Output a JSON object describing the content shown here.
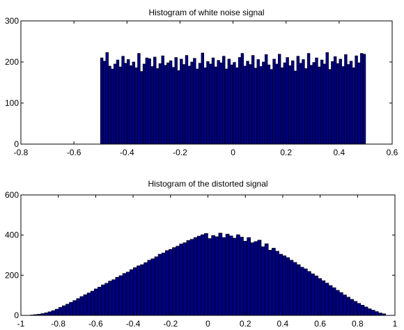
{
  "chart_data": [
    {
      "type": "bar",
      "title": "Histogram of white noise signal",
      "xlabel": "",
      "ylabel": "",
      "xlim": [
        -0.8,
        0.6
      ],
      "ylim": [
        0,
        300
      ],
      "xticks": [
        "-0.8",
        "-0.6",
        "-0.4",
        "-0.2",
        "0",
        "0.2",
        "0.4",
        "0.6"
      ],
      "yticks": [
        "0",
        "100",
        "200",
        "300"
      ],
      "bar_color": "#000080",
      "bin_range": [
        -0.5,
        0.5
      ],
      "values": [
        210,
        202,
        223,
        190,
        183,
        195,
        205,
        188,
        214,
        197,
        206,
        191,
        200,
        186,
        221,
        177,
        195,
        210,
        208,
        189,
        212,
        184,
        196,
        215,
        192,
        198,
        203,
        187,
        211,
        179,
        207,
        194,
        216,
        190,
        200,
        209,
        183,
        197,
        222,
        186,
        201,
        195,
        210,
        188,
        204,
        198,
        214,
        183,
        207,
        193,
        199,
        186,
        211,
        221,
        190,
        202,
        194,
        216,
        185,
        206,
        189,
        200,
        218,
        193,
        182,
        207,
        195,
        219,
        186,
        198,
        211,
        191,
        203,
        178,
        214,
        197,
        206,
        184,
        221,
        192,
        199,
        210,
        188,
        205,
        195,
        223,
        182,
        201,
        213,
        196,
        207,
        189,
        218,
        194,
        202,
        186,
        215,
        198,
        221,
        219
      ]
    },
    {
      "type": "bar",
      "title": "Histogram of  the distorted  signal",
      "xlabel": "",
      "ylabel": "",
      "xlim": [
        -1,
        1
      ],
      "ylim": [
        0,
        600
      ],
      "xticks": [
        "-1",
        "-0.8",
        "-0.6",
        "-0.4",
        "-0.2",
        "0",
        "0.2",
        "0.4",
        "0.6",
        "0.8",
        "1"
      ],
      "yticks": [
        "0",
        "200",
        "400",
        "600"
      ],
      "bar_color": "#000080",
      "bin_range": [
        -0.95,
        0.95
      ],
      "values": [
        2,
        4,
        6,
        9,
        13,
        18,
        24,
        31,
        40,
        48,
        56,
        65,
        74,
        84,
        94,
        103,
        112,
        121,
        132,
        141,
        152,
        160,
        171,
        178,
        190,
        198,
        209,
        216,
        228,
        238,
        247,
        253,
        263,
        275,
        282,
        292,
        305,
        311,
        323,
        329,
        338,
        345,
        356,
        362,
        373,
        379,
        388,
        395,
        402,
        408,
        383,
        398,
        392,
        410,
        388,
        405,
        396,
        385,
        402,
        390,
        370,
        388,
        362,
        368,
        375,
        342,
        357,
        325,
        335,
        320,
        305,
        297,
        288,
        275,
        264,
        253,
        240,
        232,
        219,
        207,
        197,
        184,
        173,
        161,
        149,
        138,
        125,
        114,
        102,
        91,
        80,
        70,
        60,
        51,
        42,
        33,
        26,
        19,
        12,
        8
      ]
    }
  ]
}
